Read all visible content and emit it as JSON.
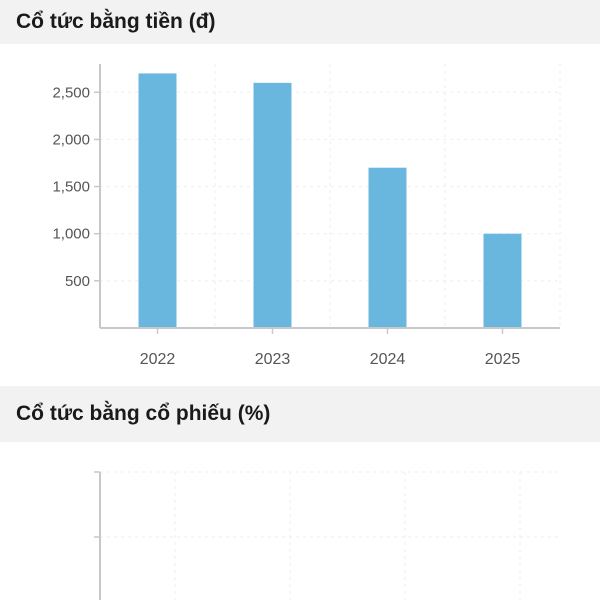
{
  "sections": {
    "cash_dividend": {
      "title": "Cổ tức bằng tiền (đ)"
    },
    "stock_dividend": {
      "title": "Cổ tức bằng cổ phiếu (%)"
    }
  },
  "colors": {
    "bar": "#69b7de",
    "header_bg": "#f2f2f2",
    "axis": "#c8c8c8",
    "tick_text": "#555555",
    "grid": "#eeeeee"
  },
  "chart_data": [
    {
      "type": "bar",
      "title": "Cổ tức bằng tiền (đ)",
      "categories": [
        "2022",
        "2023",
        "2024",
        "2025"
      ],
      "values": [
        2700,
        2600,
        1700,
        1000
      ],
      "ylim": [
        0,
        2800
      ],
      "yticks": [
        500,
        1000,
        1500,
        2000,
        2500
      ],
      "ytick_labels": [
        "500",
        "1,000",
        "1,500",
        "2,000",
        "2,500"
      ],
      "xlabel": "",
      "ylabel": "",
      "grid": true
    },
    {
      "type": "bar",
      "title": "Cổ tức bằng cổ phiếu (%)",
      "categories": [],
      "values": [],
      "xlabel": "",
      "ylabel": "",
      "grid": true
    }
  ]
}
